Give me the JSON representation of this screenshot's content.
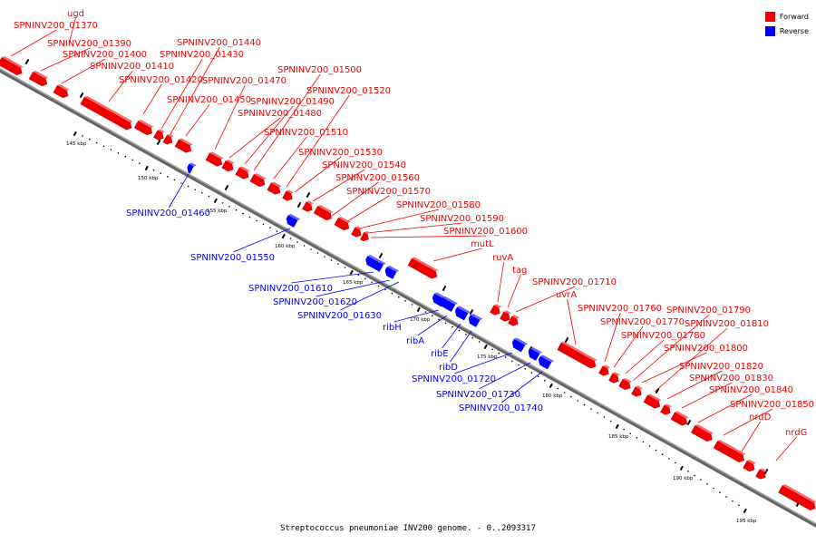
{
  "caption": "Streptococcus pneumoniae INV200 genome. - 0..2093317",
  "colors": {
    "forward": "#ee0000",
    "reverse": "#0000ff",
    "backbone": "#666666"
  },
  "legend": [
    {
      "label": "Forward",
      "color": "#ee0000"
    },
    {
      "label": "Reverse",
      "color": "#0000ff"
    }
  ],
  "tick_labels": [
    "145 kbp",
    "150 kbp",
    "155 kbp",
    "160 kbp",
    "165 kbp",
    "170 kbp",
    "175 kbp",
    "180 kbp",
    "185 kbp",
    "190 kbp",
    "195 kbp"
  ],
  "genes": [
    {
      "name": "SPNINV200_01370",
      "strand": "forward"
    },
    {
      "name": "ugd",
      "strand": "forward"
    },
    {
      "name": "SPNINV200_01390",
      "strand": "forward"
    },
    {
      "name": "SPNINV200_01400",
      "strand": "forward"
    },
    {
      "name": "SPNINV200_01410",
      "strand": "forward"
    },
    {
      "name": "SPNINV200_01420",
      "strand": "forward"
    },
    {
      "name": "SPNINV200_01430",
      "strand": "forward"
    },
    {
      "name": "SPNINV200_01440",
      "strand": "forward"
    },
    {
      "name": "SPNINV200_01450",
      "strand": "forward"
    },
    {
      "name": "SPNINV200_01460",
      "strand": "reverse"
    },
    {
      "name": "SPNINV200_01470",
      "strand": "forward"
    },
    {
      "name": "SPNINV200_01480",
      "strand": "forward"
    },
    {
      "name": "SPNINV200_01490",
      "strand": "forward"
    },
    {
      "name": "SPNINV200_01500",
      "strand": "forward"
    },
    {
      "name": "SPNINV200_01510",
      "strand": "forward"
    },
    {
      "name": "SPNINV200_01520",
      "strand": "forward"
    },
    {
      "name": "SPNINV200_01530",
      "strand": "forward"
    },
    {
      "name": "SPNINV200_01540",
      "strand": "forward"
    },
    {
      "name": "SPNINV200_01550",
      "strand": "reverse"
    },
    {
      "name": "SPNINV200_01560",
      "strand": "forward"
    },
    {
      "name": "SPNINV200_01570",
      "strand": "forward"
    },
    {
      "name": "SPNINV200_01580",
      "strand": "forward"
    },
    {
      "name": "SPNINV200_01590",
      "strand": "forward"
    },
    {
      "name": "SPNINV200_01600",
      "strand": "forward"
    },
    {
      "name": "SPNINV200_01610",
      "strand": "reverse"
    },
    {
      "name": "SPNINV200_01620",
      "strand": "reverse"
    },
    {
      "name": "SPNINV200_01630",
      "strand": "reverse"
    },
    {
      "name": "mutL",
      "strand": "forward"
    },
    {
      "name": "ribH",
      "strand": "reverse"
    },
    {
      "name": "ribA",
      "strand": "reverse"
    },
    {
      "name": "ribE",
      "strand": "reverse"
    },
    {
      "name": "ribD",
      "strand": "reverse"
    },
    {
      "name": "ruvA",
      "strand": "forward"
    },
    {
      "name": "tag",
      "strand": "forward"
    },
    {
      "name": "SPNINV200_01710",
      "strand": "forward"
    },
    {
      "name": "SPNINV200_01720",
      "strand": "reverse"
    },
    {
      "name": "SPNINV200_01730",
      "strand": "reverse"
    },
    {
      "name": "SPNINV200_01740",
      "strand": "reverse"
    },
    {
      "name": "uvrA",
      "strand": "forward"
    },
    {
      "name": "SPNINV200_01760",
      "strand": "forward"
    },
    {
      "name": "SPNINV200_01770",
      "strand": "forward"
    },
    {
      "name": "SPNINV200_01780",
      "strand": "forward"
    },
    {
      "name": "SPNINV200_01790",
      "strand": "forward"
    },
    {
      "name": "SPNINV200_01800",
      "strand": "forward"
    },
    {
      "name": "SPNINV200_01810",
      "strand": "forward"
    },
    {
      "name": "SPNINV200_01820",
      "strand": "forward"
    },
    {
      "name": "SPNINV200_01830",
      "strand": "forward"
    },
    {
      "name": "SPNINV200_01840",
      "strand": "forward"
    },
    {
      "name": "SPNINV200_01850",
      "strand": "forward"
    },
    {
      "name": "nrdD",
      "strand": "forward"
    },
    {
      "name": "nrdG",
      "strand": "forward"
    }
  ]
}
